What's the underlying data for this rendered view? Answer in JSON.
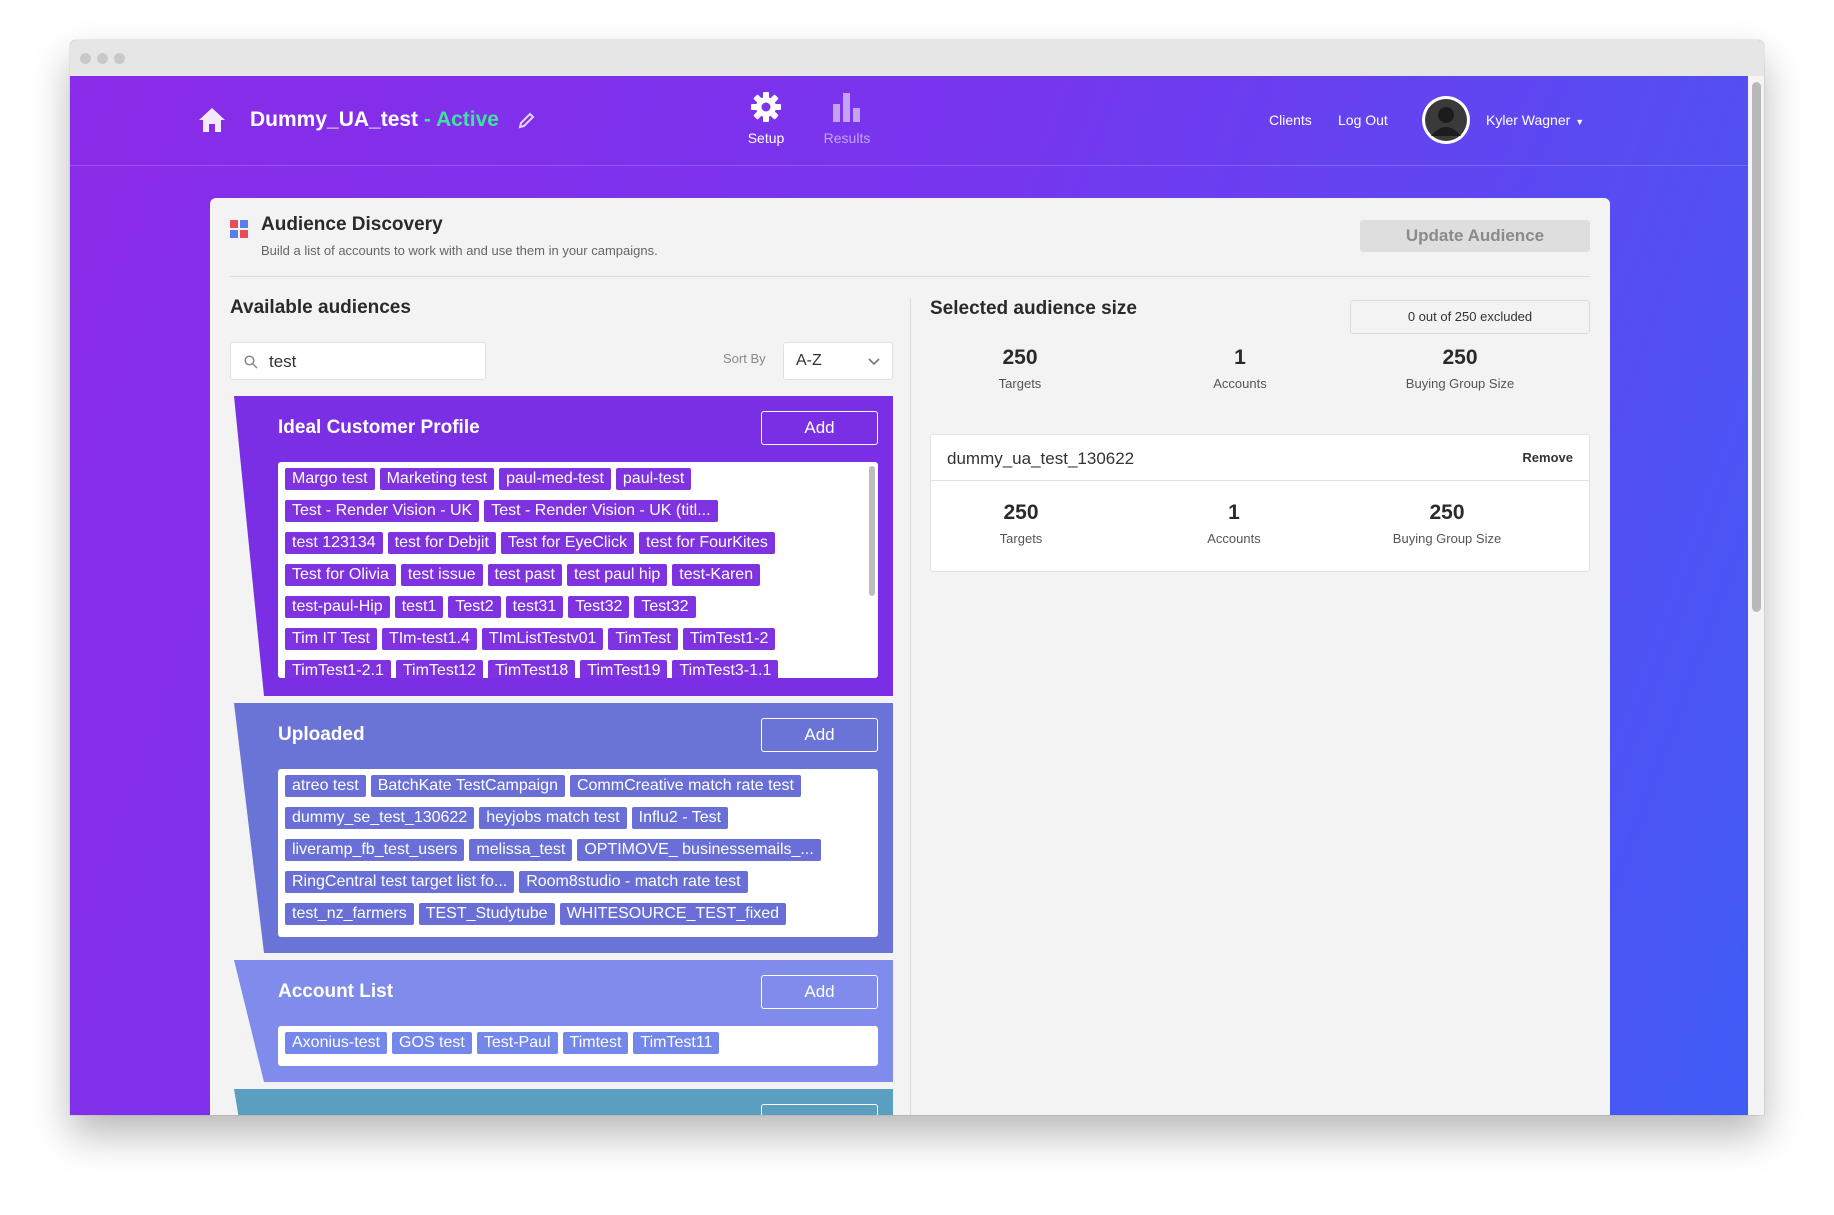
{
  "header": {
    "campaign_name": "Dummy_UA_test",
    "status": " - Active",
    "tabs": [
      {
        "label": "Setup",
        "icon": "gear-icon",
        "active": true
      },
      {
        "label": "Results",
        "icon": "bar-chart-icon",
        "active": false
      }
    ],
    "links": {
      "clients": "Clients",
      "logout": "Log Out"
    },
    "user": {
      "name": "Kyler Wagner"
    }
  },
  "page": {
    "title": "Audience Discovery",
    "subtitle": "Build a list of accounts to work with and use them in your campaigns.",
    "update_button": "Update Audience"
  },
  "available": {
    "title": "Available audiences",
    "search_value": "test",
    "sort_label": "Sort By",
    "sort_value": "A-Z",
    "groups": [
      {
        "title": "Ideal Customer Profile",
        "add_label": "Add",
        "color": "#7a2fe4",
        "tags": [
          "Margo test",
          "Marketing test",
          "paul-med-test",
          "paul-test",
          "Test - Render Vision - UK",
          "Test - Render Vision - UK (titl...",
          "test 123134",
          "test for Debjit",
          "Test for EyeClick",
          "test for FourKites",
          "Test for Olivia",
          "test issue",
          "test past",
          "test paul hip",
          "test-Karen",
          "test-paul-Hip",
          "test1",
          "Test2",
          "test31",
          "Test32",
          "Test32",
          "Tim IT Test",
          "TIm-test1.4",
          "TImListTestv01",
          "TimTest",
          "TimTest1-2",
          "TimTest1-2.1",
          "TimTest12",
          "TimTest18",
          "TimTest19",
          "TimTest3-1.1"
        ]
      },
      {
        "title": "Uploaded",
        "add_label": "Add",
        "color": "#6a74d6",
        "tags": [
          "atreo test",
          "BatchKate TestCampaign",
          "CommCreative match rate test",
          "dummy_se_test_130622",
          "heyjobs match test",
          "Influ2 - Test",
          "liveramp_fb_test_users",
          "melissa_test",
          "OPTIMOVE_ businessemails_...",
          "RingCentral test target list fo...",
          "Room8studio - match rate test",
          "test_nz_farmers",
          "TEST_Studytube",
          "WHITESOURCE_TEST_fixed"
        ]
      },
      {
        "title": "Account List",
        "add_label": "Add",
        "color": "#7f8cec",
        "tags": [
          "Axonius-test",
          "GOS test",
          "Test-Paul",
          "Timtest",
          "TimTest11"
        ]
      }
    ]
  },
  "selected": {
    "title": "Selected audience size",
    "excluded_text": "0 out of 250 excluded",
    "stats": [
      {
        "value": "250",
        "label": "Targets"
      },
      {
        "value": "1",
        "label": "Accounts"
      },
      {
        "value": "250",
        "label": "Buying Group Size"
      }
    ],
    "audience": {
      "name": "dummy_ua_test_130622",
      "remove_label": "Remove",
      "stats": [
        {
          "value": "250",
          "label": "Targets"
        },
        {
          "value": "1",
          "label": "Accounts"
        },
        {
          "value": "250",
          "label": "Buying Group Size"
        }
      ]
    }
  },
  "colors": {
    "active_status": "#3fe3a0",
    "brand_purple": "#7a2fe4"
  }
}
